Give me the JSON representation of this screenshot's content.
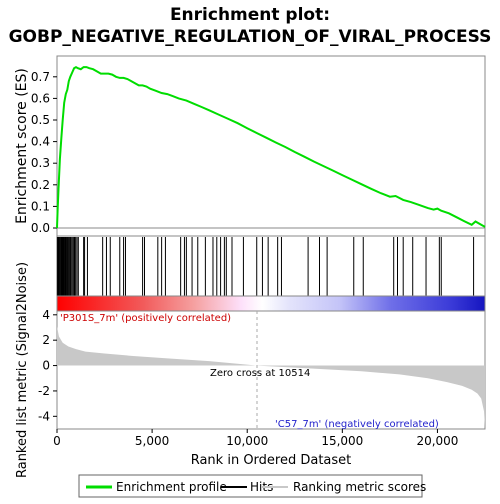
{
  "chart_data": {
    "type": "line",
    "title_line1": "Enrichment plot:",
    "title_line2": "GOBP_NEGATIVE_REGULATION_OF_VIRAL_PROCESS",
    "es_panel": {
      "ylabel": "Enrichment score (ES)",
      "ylim": [
        0,
        0.75
      ],
      "yticks": [
        "0.0",
        "0.1",
        "0.2",
        "0.3",
        "0.4",
        "0.5",
        "0.6",
        "0.7"
      ],
      "ytick_values": [
        0,
        0.1,
        0.2,
        0.3,
        0.4,
        0.5,
        0.6,
        0.7
      ],
      "series_name": "Enrichment profile",
      "color": "#00dd00",
      "x": [
        0,
        30,
        80,
        150,
        230,
        300,
        380,
        460,
        540,
        620,
        700,
        800,
        900,
        1000,
        1100,
        1250,
        1400,
        1550,
        1700,
        1900,
        2100,
        2300,
        2500,
        2700,
        2900,
        3100,
        3300,
        3500,
        3700,
        3900,
        4100,
        4300,
        4500,
        4700,
        4900,
        5200,
        5500,
        5800,
        6100,
        6400,
        6800,
        7200,
        7600,
        8000,
        8500,
        9000,
        9500,
        10000,
        10500,
        11000,
        11500,
        12000,
        12500,
        13000,
        13500,
        14000,
        14500,
        15000,
        15500,
        16000,
        16500,
        17000,
        17500,
        17800,
        18200,
        18600,
        19000,
        19500,
        19800,
        20000,
        20200,
        20600,
        21000,
        21400,
        21800,
        22000,
        22300,
        22500
      ],
      "y": [
        0.0,
        0.08,
        0.18,
        0.32,
        0.42,
        0.5,
        0.58,
        0.62,
        0.64,
        0.68,
        0.7,
        0.72,
        0.74,
        0.745,
        0.74,
        0.735,
        0.745,
        0.745,
        0.74,
        0.735,
        0.725,
        0.715,
        0.715,
        0.715,
        0.71,
        0.7,
        0.695,
        0.695,
        0.69,
        0.68,
        0.67,
        0.66,
        0.66,
        0.655,
        0.645,
        0.635,
        0.625,
        0.62,
        0.61,
        0.6,
        0.59,
        0.575,
        0.56,
        0.545,
        0.525,
        0.505,
        0.485,
        0.462,
        0.44,
        0.418,
        0.396,
        0.375,
        0.352,
        0.33,
        0.308,
        0.287,
        0.266,
        0.245,
        0.224,
        0.203,
        0.182,
        0.162,
        0.145,
        0.148,
        0.13,
        0.12,
        0.108,
        0.092,
        0.085,
        0.09,
        0.08,
        0.068,
        0.05,
        0.032,
        0.015,
        0.03,
        0.015,
        0.005
      ]
    },
    "hits": [
      20,
      60,
      100,
      140,
      180,
      230,
      260,
      290,
      320,
      360,
      400,
      440,
      470,
      520,
      560,
      610,
      650,
      700,
      740,
      800,
      860,
      920,
      980,
      1050,
      1120,
      1400,
      1450,
      1600,
      2400,
      2600,
      2800,
      3300,
      3500,
      3600,
      4500,
      4600,
      5300,
      5500,
      5700,
      6500,
      6700,
      6800,
      7100,
      7400,
      7800,
      8200,
      8400,
      8600,
      8800,
      8900,
      9200,
      9800,
      10500,
      10800,
      11100,
      11600,
      11800,
      13200,
      13800,
      14200,
      15600,
      16100,
      17700,
      17900,
      18200,
      18700,
      19400,
      20100,
      20200,
      21900
    ],
    "ranked_panel": {
      "ylabel": "Ranked list metric (Signal2Noise)",
      "ylim": [
        -5,
        4.3
      ],
      "yticks": [
        "-4",
        "-2",
        "0",
        "2",
        "4"
      ],
      "ytick_values": [
        -4,
        -2,
        0,
        2,
        4
      ],
      "xlabel": "Rank in Ordered Dataset",
      "xticks": [
        "0",
        "5,000",
        "10,000",
        "15,000",
        "20,000"
      ],
      "xtick_values": [
        0,
        5000,
        10000,
        15000,
        20000
      ],
      "x": [
        0,
        100,
        300,
        600,
        1000,
        1500,
        2500,
        4000,
        6000,
        8000,
        10514,
        13000,
        16000,
        18000,
        19500,
        20500,
        21300,
        21800,
        22100,
        22300,
        22450,
        22500
      ],
      "y": [
        3.1,
        2.3,
        1.8,
        1.5,
        1.3,
        1.1,
        0.95,
        0.75,
        0.55,
        0.35,
        0.0,
        -0.2,
        -0.45,
        -0.7,
        -1.0,
        -1.3,
        -1.6,
        -1.9,
        -2.2,
        -2.6,
        -3.6,
        -4.9
      ],
      "zero_cross_label": "Zero cross at 10514",
      "zero_cross_rank": 10514,
      "pos_label": "'P301S_7m' (positively correlated)",
      "neg_label": "'C57_7m' (negatively correlated)",
      "pos_color": "#cc0000",
      "neg_color": "#2222cc"
    },
    "xlim": [
      0,
      22500
    ],
    "legend": {
      "placement": "bottom",
      "items": [
        {
          "label": "Enrichment profile",
          "color": "#00dd00"
        },
        {
          "label": "Hits",
          "color": "#000000"
        },
        {
          "label": "Ranking metric scores",
          "color": "#c8c8c8"
        }
      ]
    }
  }
}
